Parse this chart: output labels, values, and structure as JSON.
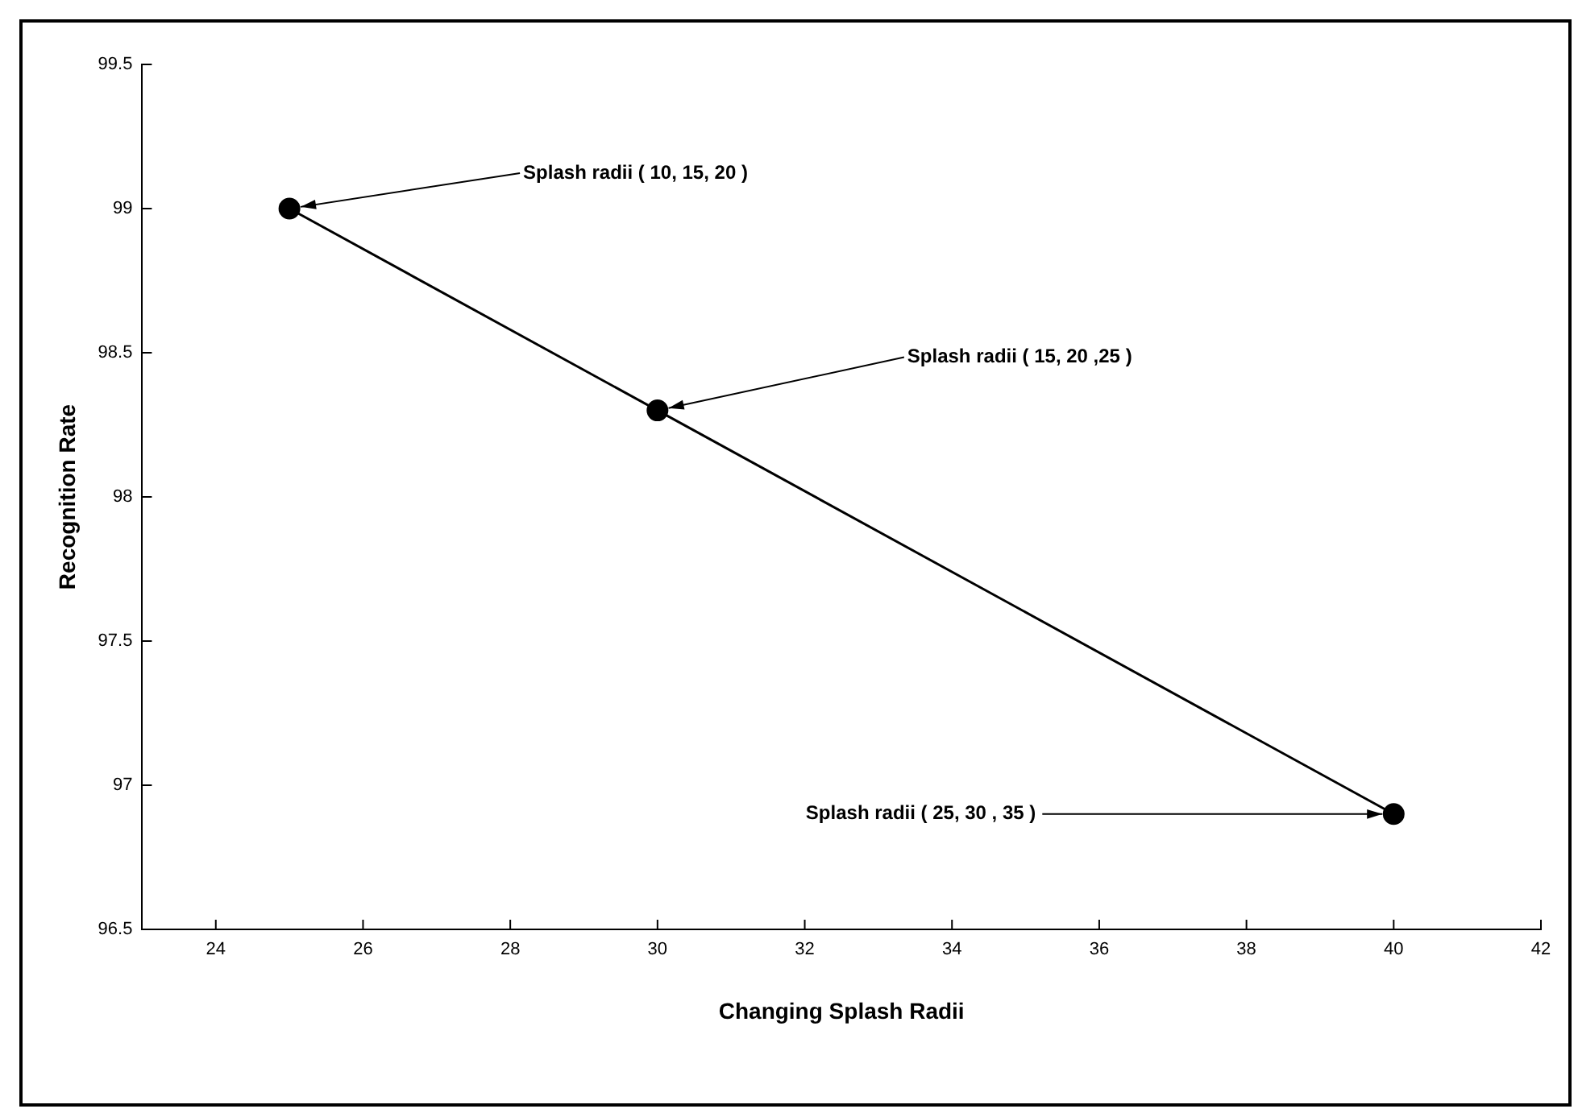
{
  "chart_data": {
    "type": "line",
    "xlabel": "Changing Splash Radii",
    "ylabel": "Recognition Rate",
    "x": [
      25,
      30,
      40
    ],
    "series": [
      {
        "color": "#000000",
        "values": [
          99,
          98.3,
          96.9
        ]
      }
    ],
    "xlim": [
      23,
      42
    ],
    "xticks": [
      24,
      26,
      28,
      30,
      32,
      34,
      36,
      38,
      40,
      42
    ],
    "ylim": [
      96.5,
      99.5
    ],
    "yticks": [
      96.5,
      97,
      97.5,
      98,
      98.5,
      99,
      99.5
    ],
    "grid": false,
    "legend": false,
    "marker": "circle",
    "line_style": "solid",
    "annotations": [
      {
        "text": "Splash radii ( 10, 15, 20 )",
        "x": 25,
        "y": 99
      },
      {
        "text": "Splash radii ( 15, 20 ,25 )",
        "x": 30,
        "y": 98.3
      },
      {
        "text": "Splash radii ( 25, 30 , 35 )",
        "x": 40,
        "y": 96.9
      }
    ]
  }
}
